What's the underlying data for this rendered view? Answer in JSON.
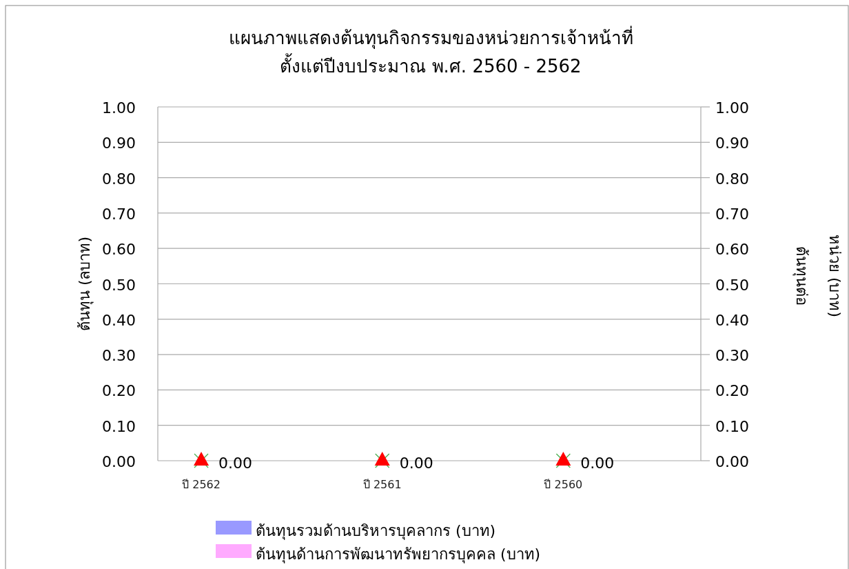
{
  "chart_data": {
    "type": "bar",
    "title": "แผนภาพแสดงต้นทุนกิจกรรมของหน่วยการเจ้าหน้าที่\nตั้งแต่ปีงบประมาณ พ.ศ. 2560 - 2562",
    "ylabel": "ต้นทุน (ลบาท)",
    "y2label": "ต้นทุนต่อ\nหน่วย (บาท)",
    "categories": [
      "ปี 2562",
      "ปี 2561",
      "ปี 2560"
    ],
    "series": [
      {
        "name": "ต้นทุนรวมด้านบริหารบุคลากร (บาท)",
        "color": "#9999ff",
        "values": [
          0,
          0,
          0
        ]
      },
      {
        "name": "ต้นทุนด้านการพัฒนาทรัพยากรบุคคล (บาท)",
        "color": "#ffaaff",
        "values": [
          0,
          0,
          0
        ]
      },
      {
        "type": "scatter",
        "marker": "cross",
        "color": "#4caf50",
        "values": [
          0,
          0,
          0
        ]
      },
      {
        "type": "scatter",
        "marker": "triangle",
        "color": "#ff0000",
        "values": [
          0,
          0,
          0
        ],
        "value_labels": [
          "0.00",
          "0.00",
          "0.00"
        ]
      }
    ],
    "ylim": [
      0,
      1
    ],
    "yticks": [
      {
        "value": 0,
        "label": "0.00"
      },
      {
        "value": 0.1,
        "label": "0.10"
      },
      {
        "value": 0.2,
        "label": "0.20"
      },
      {
        "value": 0.3,
        "label": "0.30"
      },
      {
        "value": 0.4,
        "label": "0.40"
      },
      {
        "value": 0.5,
        "label": "0.50"
      },
      {
        "value": 0.6,
        "label": "0.60"
      },
      {
        "value": 0.7,
        "label": "0.70"
      },
      {
        "value": 0.8,
        "label": "0.80"
      },
      {
        "value": 0.9,
        "label": "0.90"
      },
      {
        "value": 1,
        "label": "1.00"
      }
    ],
    "y2lim": [
      0,
      1
    ],
    "y2ticks": [
      {
        "value": 0,
        "label": "0.00"
      },
      {
        "value": 0.1,
        "label": "0.10"
      },
      {
        "value": 0.2,
        "label": "0.20"
      },
      {
        "value": 0.3,
        "label": "0.30"
      },
      {
        "value": 0.4,
        "label": "0.40"
      },
      {
        "value": 0.5,
        "label": "0.50"
      },
      {
        "value": 0.6,
        "label": "0.60"
      },
      {
        "value": 0.7,
        "label": "0.70"
      },
      {
        "value": 0.8,
        "label": "0.80"
      },
      {
        "value": 0.9,
        "label": "0.90"
      },
      {
        "value": 1,
        "label": "1.00"
      }
    ],
    "grid": "y",
    "legend": "bottom"
  }
}
